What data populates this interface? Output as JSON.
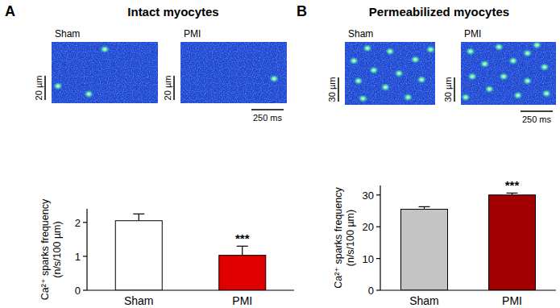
{
  "panels": [
    {
      "letter": "A",
      "title": "Intact myocytes",
      "images": [
        {
          "label": "Sham",
          "scale_y": "20 µm"
        },
        {
          "label": "PMI",
          "scale_y": "20 µm",
          "scale_x": "250 ms"
        }
      ]
    },
    {
      "letter": "B",
      "title": "Permeabilized myocytes",
      "images": [
        {
          "label": "Sham",
          "scale_y": "30 µm"
        },
        {
          "label": "PMI",
          "scale_y": "30 µm",
          "scale_x": "250 ms"
        }
      ]
    }
  ],
  "chart_data": [
    {
      "type": "bar",
      "ylabel": "Ca²⁺ sparks frequency (n/s/100 µm)",
      "categories": [
        "Sham",
        "PMI"
      ],
      "values": [
        2.05,
        1.03
      ],
      "errors": [
        0.2,
        0.27
      ],
      "colors": [
        "#ffffff",
        "#e00000"
      ],
      "significance": [
        null,
        "***"
      ],
      "ylim": [
        0,
        2.4
      ],
      "yticks": [
        0,
        1,
        2
      ]
    },
    {
      "type": "bar",
      "ylabel": "Ca²⁺ sparks frequency (n/s/100 µm)",
      "categories": [
        "Sham",
        "PMI"
      ],
      "values": [
        25.5,
        30
      ],
      "errors": [
        0.8,
        0.6
      ],
      "colors": [
        "#c4c4c4",
        "#a00000"
      ],
      "significance": [
        null,
        "***"
      ],
      "ylim": [
        0,
        33
      ],
      "yticks": [
        0,
        10,
        20,
        30
      ]
    }
  ]
}
